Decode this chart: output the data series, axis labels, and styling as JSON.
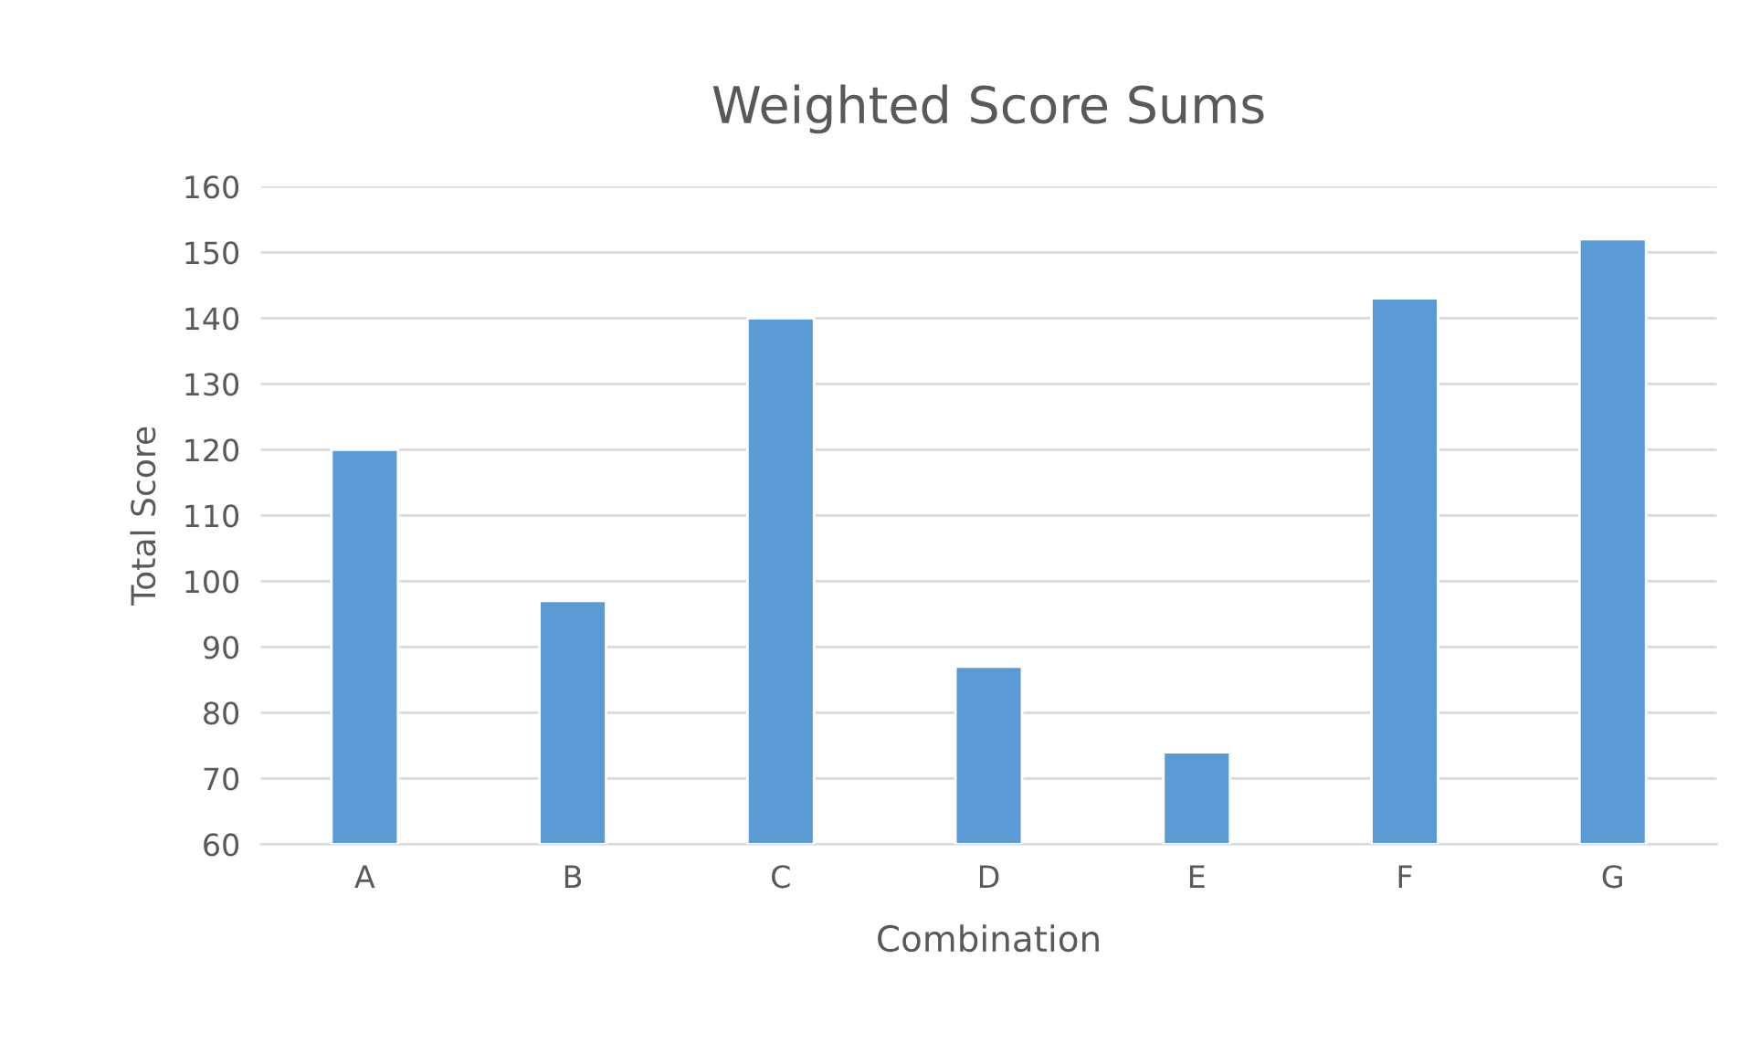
{
  "chart_data": {
    "type": "bar",
    "title": "Weighted Score Sums",
    "xlabel": "Combination",
    "ylabel": "Total Score",
    "categories": [
      "A",
      "B",
      "C",
      "D",
      "E",
      "F",
      "G"
    ],
    "values": [
      120,
      97,
      140,
      87,
      74,
      143,
      152
    ],
    "color": "#5b9bd5",
    "ylim": [
      60,
      160
    ],
    "yticks": [
      60,
      70,
      80,
      90,
      100,
      110,
      120,
      130,
      140,
      150,
      160
    ],
    "grid": "y"
  }
}
